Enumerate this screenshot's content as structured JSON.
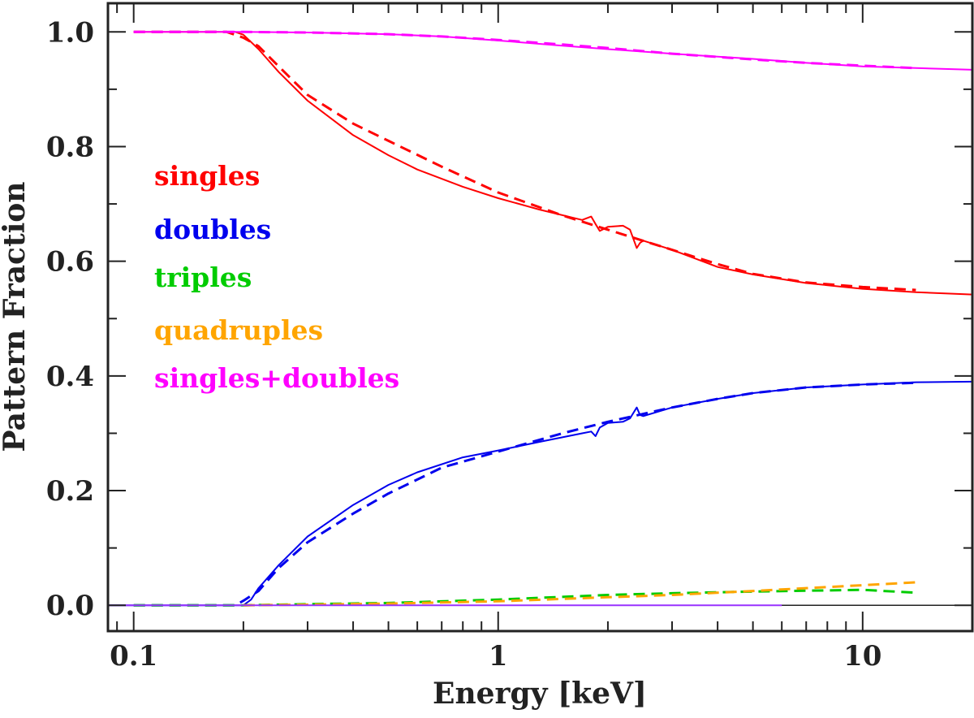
{
  "chart_data": {
    "type": "line",
    "title": "",
    "xlabel": "Energy [keV]",
    "ylabel": "Pattern Fraction",
    "xscale": "log",
    "xlim": [
      0.085,
      20
    ],
    "ylim": [
      -0.045,
      1.05
    ],
    "grid": false,
    "legend_position": "left",
    "x_ticks": [
      {
        "value": 0.1,
        "label": "0.1"
      },
      {
        "value": 1,
        "label": "1"
      },
      {
        "value": 10,
        "label": "10"
      }
    ],
    "y_ticks": [
      {
        "value": 0.0,
        "label": "0.0"
      },
      {
        "value": 0.2,
        "label": "0.2"
      },
      {
        "value": 0.4,
        "label": "0.4"
      },
      {
        "value": 0.6,
        "label": "0.6"
      },
      {
        "value": 0.8,
        "label": "0.8"
      },
      {
        "value": 1.0,
        "label": "1.0"
      }
    ],
    "legend": [
      {
        "label": "singles",
        "color": "#ff0000"
      },
      {
        "label": "doubles",
        "color": "#0000ee"
      },
      {
        "label": "triples",
        "color": "#00cc00"
      },
      {
        "label": "quadruples",
        "color": "#ffa500"
      },
      {
        "label": "singles+doubles",
        "color": "#ff00ff"
      }
    ],
    "series": [
      {
        "name": "singles (measured)",
        "color": "#ff0000",
        "style": "solid",
        "x": [
          0.1,
          0.19,
          0.2,
          0.22,
          0.25,
          0.3,
          0.4,
          0.5,
          0.6,
          0.8,
          1.0,
          1.3,
          1.7,
          1.8,
          1.85,
          1.9,
          2.0,
          2.2,
          2.3,
          2.4,
          2.45,
          2.5,
          3.0,
          4.0,
          5.0,
          7.0,
          10.0,
          14.0,
          20.0
        ],
        "y": [
          1.0,
          1.0,
          0.995,
          0.97,
          0.93,
          0.88,
          0.82,
          0.785,
          0.76,
          0.73,
          0.71,
          0.69,
          0.672,
          0.678,
          0.665,
          0.653,
          0.66,
          0.662,
          0.655,
          0.623,
          0.632,
          0.636,
          0.62,
          0.59,
          0.577,
          0.562,
          0.552,
          0.546,
          0.542
        ]
      },
      {
        "name": "singles (model)",
        "color": "#ff0000",
        "style": "dashed",
        "x": [
          0.1,
          0.18,
          0.2,
          0.22,
          0.25,
          0.3,
          0.4,
          0.5,
          0.7,
          1.0,
          1.5,
          2.0,
          3.0,
          4.0,
          5.0,
          7.0,
          10.0,
          14.0
        ],
        "y": [
          1.0,
          1.0,
          0.99,
          0.975,
          0.94,
          0.89,
          0.84,
          0.81,
          0.765,
          0.72,
          0.68,
          0.655,
          0.62,
          0.595,
          0.578,
          0.563,
          0.555,
          0.55
        ]
      },
      {
        "name": "doubles (measured)",
        "color": "#0000ee",
        "style": "solid",
        "x": [
          0.085,
          0.2,
          0.21,
          0.22,
          0.25,
          0.3,
          0.4,
          0.5,
          0.6,
          0.8,
          1.0,
          1.3,
          1.7,
          1.8,
          1.85,
          1.9,
          2.0,
          2.2,
          2.3,
          2.4,
          2.45,
          2.5,
          3.0,
          4.0,
          5.0,
          7.0,
          10.0,
          14.0,
          20.0
        ],
        "y": [
          0.0,
          0.0,
          0.01,
          0.03,
          0.07,
          0.12,
          0.175,
          0.21,
          0.232,
          0.258,
          0.27,
          0.285,
          0.3,
          0.303,
          0.295,
          0.31,
          0.318,
          0.32,
          0.326,
          0.345,
          0.332,
          0.33,
          0.345,
          0.36,
          0.37,
          0.38,
          0.385,
          0.389,
          0.39
        ]
      },
      {
        "name": "doubles (model)",
        "color": "#0000ee",
        "style": "dashed",
        "x": [
          0.1,
          0.19,
          0.2,
          0.22,
          0.25,
          0.3,
          0.4,
          0.5,
          0.7,
          1.0,
          1.5,
          2.0,
          3.0,
          4.0,
          5.0,
          7.0,
          10.0,
          14.0
        ],
        "y": [
          0.0,
          0.0,
          0.008,
          0.025,
          0.065,
          0.11,
          0.16,
          0.195,
          0.24,
          0.268,
          0.3,
          0.32,
          0.345,
          0.36,
          0.37,
          0.38,
          0.385,
          0.388
        ]
      },
      {
        "name": "singles+doubles (measured)",
        "color": "#ff00ff",
        "style": "solid",
        "x": [
          0.1,
          0.2,
          0.3,
          0.5,
          0.7,
          1.0,
          1.5,
          2.0,
          3.0,
          5.0,
          7.0,
          10.0,
          14.0,
          20.0
        ],
        "y": [
          1.0,
          1.0,
          0.999,
          0.996,
          0.992,
          0.985,
          0.976,
          0.97,
          0.962,
          0.953,
          0.946,
          0.94,
          0.937,
          0.934
        ]
      },
      {
        "name": "singles+doubles (model)",
        "color": "#ff00ff",
        "style": "dashed",
        "x": [
          0.1,
          0.2,
          0.3,
          0.5,
          0.7,
          1.0,
          1.5,
          2.0,
          3.0,
          5.0,
          7.0,
          10.0,
          14.0
        ],
        "y": [
          1.0,
          1.0,
          0.999,
          0.996,
          0.992,
          0.986,
          0.978,
          0.972,
          0.962,
          0.952,
          0.946,
          0.941,
          0.937
        ]
      },
      {
        "name": "triples (model)",
        "color": "#00cc00",
        "style": "dashed",
        "x": [
          0.1,
          0.2,
          0.3,
          0.5,
          1.0,
          2.0,
          3.0,
          5.0,
          10.0,
          14.0
        ],
        "y": [
          0.0,
          0.0,
          0.002,
          0.004,
          0.01,
          0.018,
          0.021,
          0.024,
          0.027,
          0.022
        ]
      },
      {
        "name": "quadruples (model)",
        "color": "#ffa500",
        "style": "dashed",
        "x": [
          0.2,
          0.3,
          0.5,
          1.0,
          2.0,
          3.0,
          5.0,
          10.0,
          14.0
        ],
        "y": [
          0.0,
          0.001,
          0.003,
          0.007,
          0.014,
          0.018,
          0.025,
          0.035,
          0.04
        ]
      },
      {
        "name": "triples/quadruples (measured)",
        "color": "#9933ff",
        "style": "solid",
        "x": [
          0.085,
          6.0
        ],
        "y": [
          0.0,
          0.0
        ]
      }
    ]
  }
}
